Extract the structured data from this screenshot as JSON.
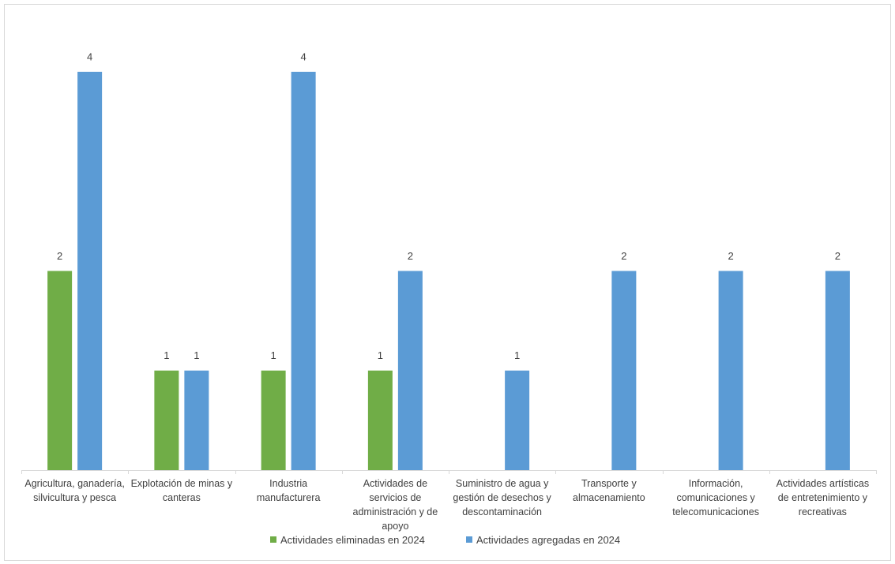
{
  "chart_data": {
    "type": "bar",
    "categories": [
      "Agricultura, ganadería, silvicultura y pesca",
      "Explotación de minas y canteras",
      "Industria manufacturera",
      "Actividades de servicios de administración y de apoyo",
      "Suministro de agua y gestión de desechos y descontaminación",
      "Transporte y almacenamiento",
      "Información, comunicaciones y telecomunicaciones",
      "Actividades artísticas de entretenimiento y recreativas"
    ],
    "series": [
      {
        "name": "Actividades eliminadas en 2024",
        "color": "#70ad47",
        "values": [
          2,
          1,
          1,
          1,
          null,
          null,
          null,
          null
        ]
      },
      {
        "name": "Actividades agregadas en 2024",
        "color": "#5b9bd5",
        "values": [
          4,
          1,
          4,
          2,
          1,
          2,
          2,
          2
        ]
      }
    ],
    "ylim": [
      0,
      4
    ],
    "legend": "bottom"
  }
}
